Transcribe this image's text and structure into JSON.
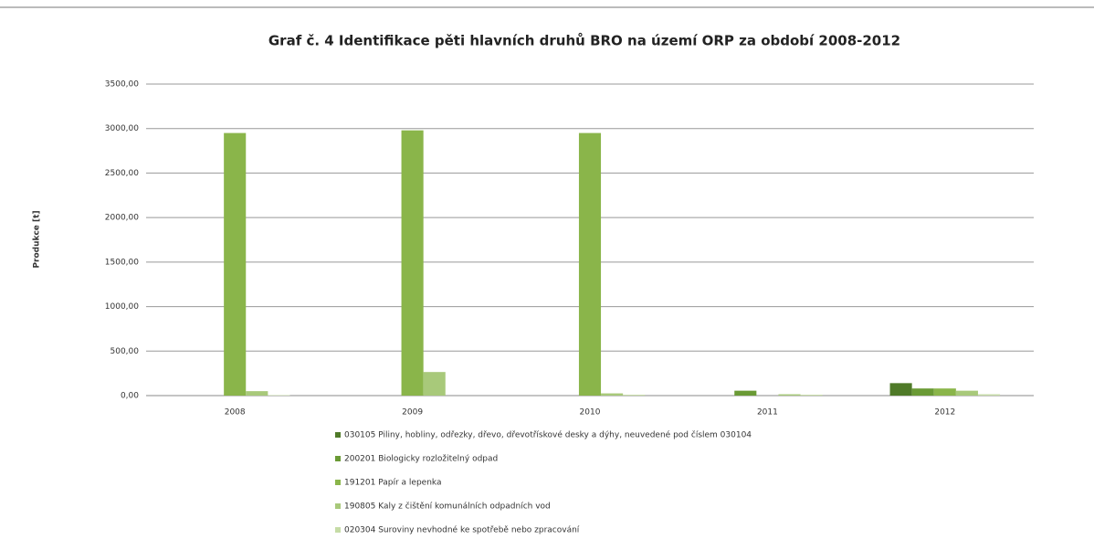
{
  "chart_data": {
    "type": "bar",
    "title": "Graf č. 4 Identifikace pěti hlavních druhů BRO na území ORP za období 2008-2012",
    "y_label": "Produkce [t]",
    "categories": [
      "2008",
      "2009",
      "2010",
      "2011",
      "2012"
    ],
    "series": [
      {
        "name": "030105 Piliny, hobliny, odřezky, dřevo, dřevotřískové desky a dýhy, neuvedené pod číslem 030104",
        "color": "#4f7a28",
        "values": [
          0,
          0,
          0,
          0,
          140
        ]
      },
      {
        "name": "200201 Biologicky rozložitelný odpad",
        "color": "#6a9a35",
        "values": [
          0,
          0,
          0,
          55,
          80
        ]
      },
      {
        "name": "191201 Papír a lepenka",
        "color": "#8ab54a",
        "values": [
          2950,
          2980,
          2950,
          0,
          80
        ]
      },
      {
        "name": "190805 Kaly z čištění komunálních odpadních vod",
        "color": "#a8c97a",
        "values": [
          50,
          265,
          25,
          15,
          55
        ]
      },
      {
        "name": "020304 Suroviny nevhodné ke spotřebě nebo zpracování",
        "color": "#c6dca6",
        "values": [
          5,
          0,
          10,
          10,
          15
        ]
      }
    ],
    "ylim": [
      0,
      3500
    ],
    "yticks": [
      {
        "value": 0,
        "label": "0,00"
      },
      {
        "value": 500,
        "label": "500,00"
      },
      {
        "value": 1000,
        "label": "1000,00"
      },
      {
        "value": 1500,
        "label": "1500,00"
      },
      {
        "value": 2000,
        "label": "2000,00"
      },
      {
        "value": 2500,
        "label": "2500,00"
      },
      {
        "value": 3000,
        "label": "3000,00"
      },
      {
        "value": 3500,
        "label": "3500,00"
      }
    ],
    "grid": true,
    "legend": "bottom"
  }
}
